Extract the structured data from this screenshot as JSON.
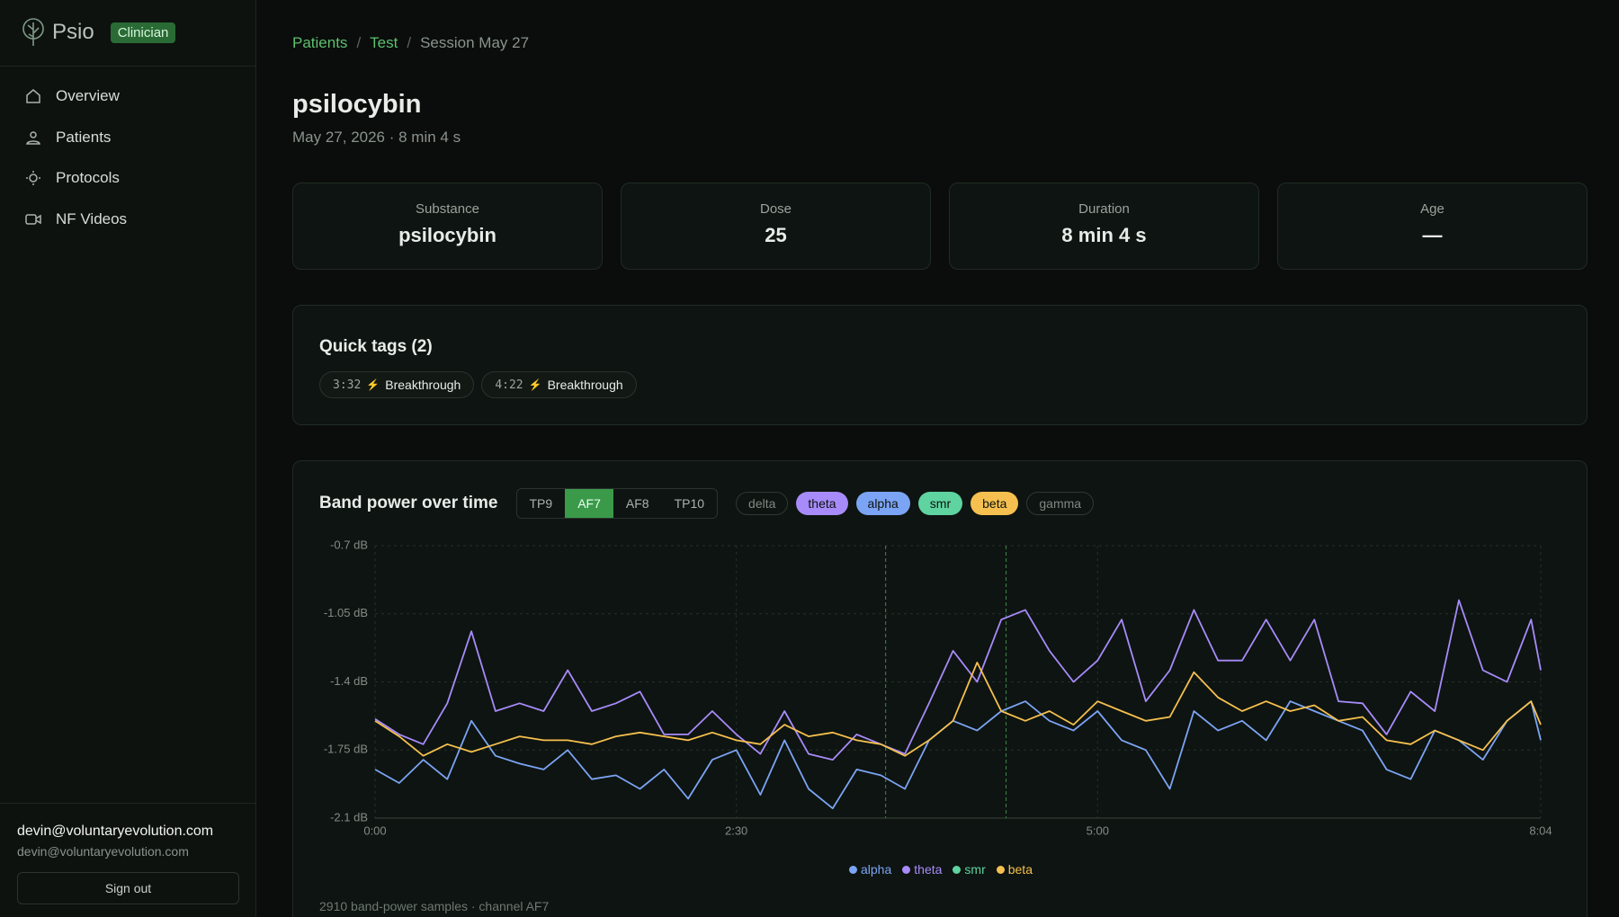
{
  "sidebar": {
    "brand": "Psio",
    "badge": "Clinician",
    "nav": [
      "Overview",
      "Patients",
      "Protocols",
      "NF Videos"
    ],
    "user": {
      "name": "devin@voluntaryevolution.com",
      "email": "devin@voluntaryevolution.com"
    },
    "sign_out": "Sign out"
  },
  "breadcrumb": [
    "Patients",
    "Test",
    "Session May 27"
  ],
  "header": {
    "title": "psilocybin",
    "subtitle": "May 27, 2026 · 8 min 4 s"
  },
  "stats": [
    {
      "label": "Substance",
      "value": "psilocybin"
    },
    {
      "label": "Dose",
      "value": "25"
    },
    {
      "label": "Duration",
      "value": "8 min 4 s"
    },
    {
      "label": "Age",
      "value": "—"
    }
  ],
  "quick_tags": {
    "title": "Quick tags (2)",
    "tags": [
      {
        "time": "3:32",
        "label": "Breakthrough"
      },
      {
        "time": "4:22",
        "label": "Breakthrough"
      }
    ]
  },
  "chart_data": {
    "type": "line",
    "title": "Band power over time",
    "channels": [
      "TP9",
      "AF7",
      "AF8",
      "TP10"
    ],
    "active_channel": "AF7",
    "bands": [
      {
        "name": "delta",
        "active": false,
        "color": "#9aa39c"
      },
      {
        "name": "theta",
        "active": true,
        "color": "#a78bfa"
      },
      {
        "name": "alpha",
        "active": true,
        "color": "#7ba4f4"
      },
      {
        "name": "smr",
        "active": true,
        "color": "#5fd3a0"
      },
      {
        "name": "beta",
        "active": true,
        "color": "#f5c04f"
      },
      {
        "name": "gamma",
        "active": false,
        "color": "#9aa39c"
      }
    ],
    "x": [
      0,
      10,
      20,
      30,
      40,
      50,
      60,
      70,
      80,
      90,
      100,
      110,
      120,
      130,
      140,
      150,
      160,
      170,
      180,
      190,
      200,
      210,
      220,
      230,
      240,
      250,
      260,
      270,
      280,
      290,
      300,
      310,
      320,
      330,
      340,
      350,
      360,
      370,
      380,
      390,
      400,
      410,
      420,
      430,
      440,
      450,
      460,
      470,
      480,
      484
    ],
    "series": [
      {
        "name": "alpha",
        "color": "#7ba4f4",
        "values": [
          -1.85,
          -1.92,
          -1.8,
          -1.9,
          -1.6,
          -1.78,
          -1.82,
          -1.85,
          -1.75,
          -1.9,
          -1.88,
          -1.95,
          -1.85,
          -2.0,
          -1.8,
          -1.75,
          -1.98,
          -1.7,
          -1.95,
          -2.05,
          -1.85,
          -1.88,
          -1.95,
          -1.7,
          -1.6,
          -1.65,
          -1.55,
          -1.5,
          -1.6,
          -1.65,
          -1.55,
          -1.7,
          -1.75,
          -1.95,
          -1.55,
          -1.65,
          -1.6,
          -1.7,
          -1.5,
          -1.55,
          -1.6,
          -1.65,
          -1.85,
          -1.9,
          -1.65,
          -1.7,
          -1.8,
          -1.6,
          -1.5,
          -1.7
        ]
      },
      {
        "name": "theta",
        "color": "#a78bfa",
        "values": [
          -1.59,
          -1.67,
          -1.72,
          -1.51,
          -1.14,
          -1.55,
          -1.51,
          -1.55,
          -1.34,
          -1.55,
          -1.51,
          -1.45,
          -1.67,
          -1.67,
          -1.55,
          -1.67,
          -1.77,
          -1.55,
          -1.77,
          -1.8,
          -1.67,
          -1.72,
          -1.77,
          -1.51,
          -1.24,
          -1.4,
          -1.08,
          -1.03,
          -1.24,
          -1.4,
          -1.29,
          -1.08,
          -1.5,
          -1.34,
          -1.03,
          -1.29,
          -1.29,
          -1.08,
          -1.29,
          -1.08,
          -1.5,
          -1.51,
          -1.67,
          -1.45,
          -1.55,
          -0.98,
          -1.34,
          -1.4,
          -1.08,
          -1.34
        ]
      },
      {
        "name": "smr",
        "color": "#5fd3a0",
        "values": [
          null,
          null,
          null,
          null,
          null,
          null,
          null,
          null,
          null,
          null,
          null,
          null,
          null,
          null,
          null,
          null,
          null,
          null,
          null,
          null,
          null,
          null,
          null,
          null,
          null,
          null,
          null,
          null,
          null,
          null,
          null,
          null,
          null,
          null,
          null,
          null,
          null,
          null,
          null,
          null,
          null,
          null,
          null,
          null,
          null,
          null,
          null,
          null,
          null,
          null
        ]
      },
      {
        "name": "beta",
        "color": "#f5c04f",
        "values": [
          -1.6,
          -1.68,
          -1.78,
          -1.72,
          -1.76,
          -1.72,
          -1.68,
          -1.7,
          -1.7,
          -1.72,
          -1.68,
          -1.66,
          -1.68,
          -1.7,
          -1.66,
          -1.7,
          -1.72,
          -1.62,
          -1.68,
          -1.66,
          -1.7,
          -1.72,
          -1.78,
          -1.7,
          -1.6,
          -1.3,
          -1.55,
          -1.6,
          -1.55,
          -1.62,
          -1.5,
          -1.55,
          -1.6,
          -1.58,
          -1.35,
          -1.48,
          -1.55,
          -1.5,
          -1.55,
          -1.52,
          -1.6,
          -1.58,
          -1.7,
          -1.72,
          -1.65,
          -1.7,
          -1.75,
          -1.6,
          -1.5,
          -1.62
        ]
      }
    ],
    "xlim": [
      0,
      484
    ],
    "xticks": [
      {
        "value": 0,
        "label": "0:00"
      },
      {
        "value": 150,
        "label": "2:30"
      },
      {
        "value": 300,
        "label": "5:00"
      },
      {
        "value": 484,
        "label": "8:04"
      }
    ],
    "ylim": [
      -2.1,
      -0.7
    ],
    "yticks": [
      {
        "value": -2.1,
        "label": "-2.1 dB"
      },
      {
        "value": -1.75,
        "label": "-1.75 dB"
      },
      {
        "value": -1.4,
        "label": "-1.4 dB"
      },
      {
        "value": -1.05,
        "label": "-1.05 dB"
      },
      {
        "value": -0.7,
        "label": "-0.7 dB"
      }
    ],
    "markers": [
      212,
      262
    ],
    "grid": true,
    "footnote": "2910 band-power samples · channel AF7"
  }
}
